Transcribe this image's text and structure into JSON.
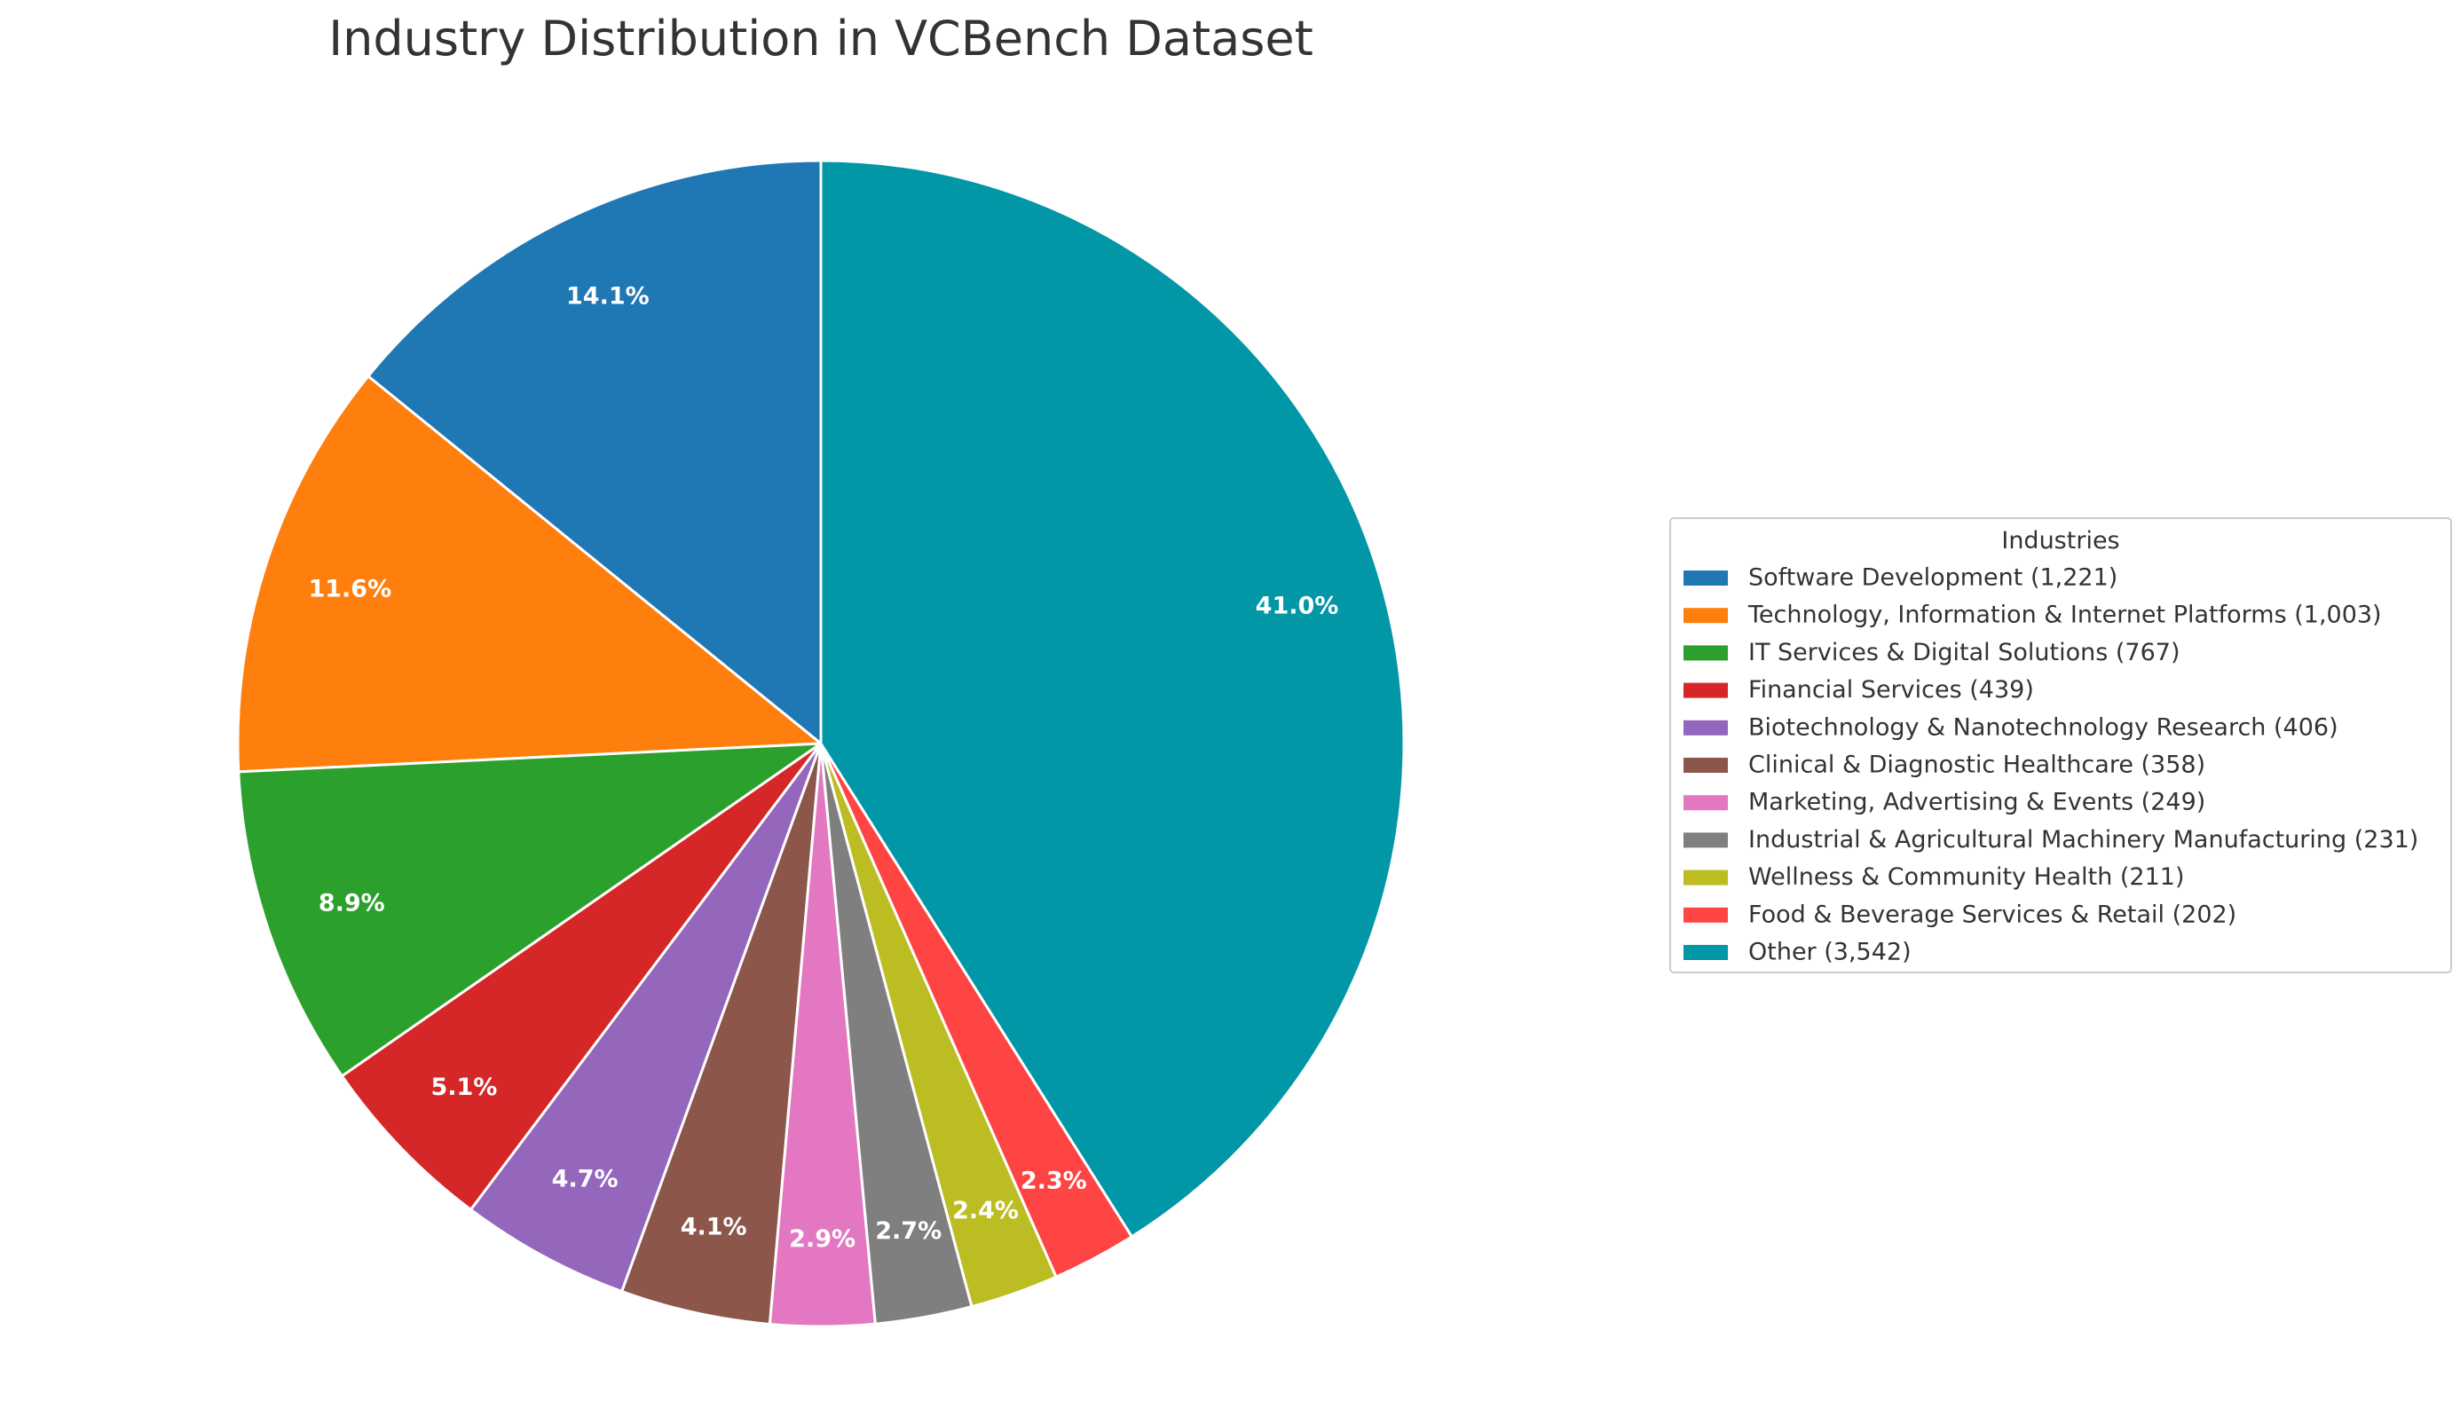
{
  "chart_data": {
    "type": "pie",
    "title": "Industry Distribution in VCBench Dataset",
    "start": "12 o'clock",
    "direction": "counterclockwise",
    "legend": {
      "title": "Industries",
      "placement": "center-right"
    },
    "slices": [
      {
        "name": "Software Development",
        "value": 1221,
        "count_label": "1,221",
        "percent_label": "14.1%",
        "color": "#1f77b4"
      },
      {
        "name": "Technology, Information & Internet Platforms",
        "value": 1003,
        "count_label": "1,003",
        "percent_label": "11.6%",
        "color": "#ff7f0e"
      },
      {
        "name": "IT Services & Digital Solutions",
        "value": 767,
        "count_label": "767",
        "percent_label": "8.9%",
        "color": "#2ca02c"
      },
      {
        "name": "Financial Services",
        "value": 439,
        "count_label": "439",
        "percent_label": "5.1%",
        "color": "#d62728"
      },
      {
        "name": "Biotechnology & Nanotechnology Research",
        "value": 406,
        "count_label": "406",
        "percent_label": "4.7%",
        "color": "#9467bd"
      },
      {
        "name": "Clinical & Diagnostic Healthcare",
        "value": 358,
        "count_label": "358",
        "percent_label": "4.1%",
        "color": "#8c564b"
      },
      {
        "name": "Marketing, Advertising & Events",
        "value": 249,
        "count_label": "249",
        "percent_label": "2.9%",
        "color": "#e377c2"
      },
      {
        "name": "Industrial & Agricultural Machinery Manufacturing",
        "value": 231,
        "count_label": "231",
        "percent_label": "2.7%",
        "color": "#7f7f7f"
      },
      {
        "name": "Wellness & Community Health",
        "value": 211,
        "count_label": "211",
        "percent_label": "2.4%",
        "color": "#bcbd22"
      },
      {
        "name": "Food & Beverage Services & Retail",
        "value": 202,
        "count_label": "202",
        "percent_label": "2.3%",
        "color": "#ff4444"
      },
      {
        "name": "Other",
        "value": 3542,
        "count_label": "3,542",
        "percent_label": "41.0%",
        "color": "#0197a7"
      }
    ]
  }
}
